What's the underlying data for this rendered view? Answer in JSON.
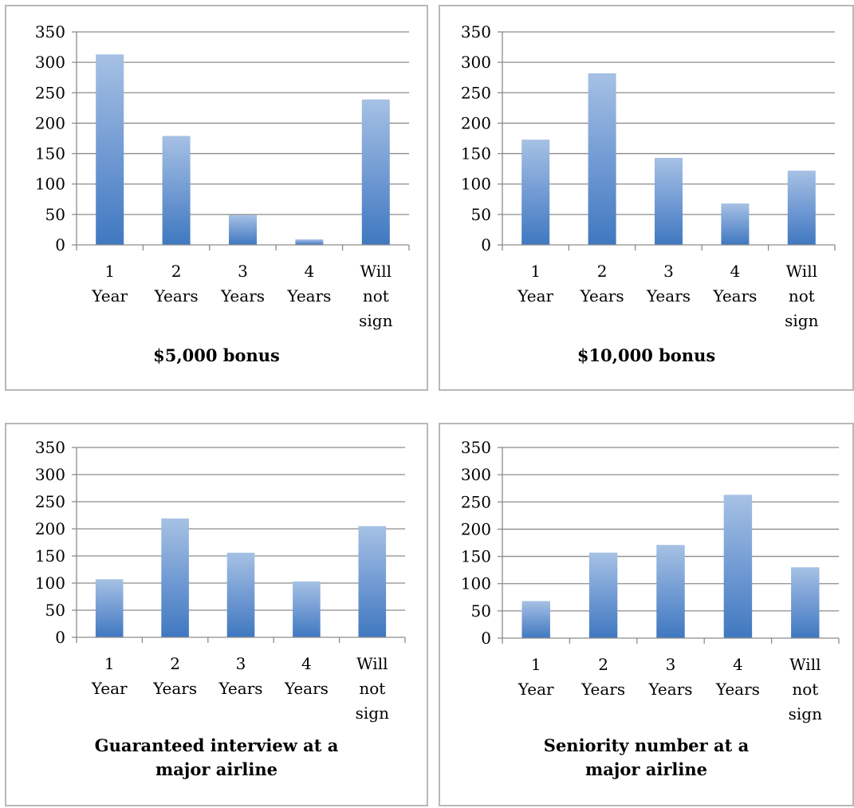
{
  "chart_data": [
    {
      "type": "bar",
      "title": "$5,000 bonus",
      "categories": [
        [
          "1",
          "Year"
        ],
        [
          "2",
          "Years"
        ],
        [
          "3",
          "Years"
        ],
        [
          "4",
          "Years"
        ],
        [
          "Will",
          "not",
          "sign"
        ]
      ],
      "values": [
        313,
        179,
        49,
        9,
        239
      ],
      "ylim": [
        0,
        350
      ],
      "yticks": [
        0,
        50,
        100,
        150,
        200,
        250,
        300,
        350
      ],
      "grid": true,
      "colors": {
        "bar_top": "#a6c1e4",
        "bar_bottom": "#3f78c0",
        "grid": "#8c8c8c"
      }
    },
    {
      "type": "bar",
      "title": "$10,000 bonus",
      "categories": [
        [
          "1",
          "Year"
        ],
        [
          "2",
          "Years"
        ],
        [
          "3",
          "Years"
        ],
        [
          "4",
          "Years"
        ],
        [
          "Will",
          "not",
          "sign"
        ]
      ],
      "values": [
        173,
        282,
        143,
        68,
        122
      ],
      "ylim": [
        0,
        350
      ],
      "yticks": [
        0,
        50,
        100,
        150,
        200,
        250,
        300,
        350
      ],
      "grid": true,
      "colors": {
        "bar_top": "#a6c1e4",
        "bar_bottom": "#3f78c0",
        "grid": "#8c8c8c"
      }
    },
    {
      "type": "bar",
      "title": [
        "Guaranteed interview at a",
        "major airline"
      ],
      "categories": [
        [
          "1",
          "Year"
        ],
        [
          "2",
          "Years"
        ],
        [
          "3",
          "Years"
        ],
        [
          "4",
          "Years"
        ],
        [
          "Will",
          "not",
          "sign"
        ]
      ],
      "values": [
        107,
        219,
        156,
        103,
        205
      ],
      "ylim": [
        0,
        350
      ],
      "yticks": [
        0,
        50,
        100,
        150,
        200,
        250,
        300,
        350
      ],
      "grid": true,
      "colors": {
        "bar_top": "#a6c1e4",
        "bar_bottom": "#3f78c0",
        "grid": "#8c8c8c"
      }
    },
    {
      "type": "bar",
      "title": [
        "Seniority number at a",
        "major airline"
      ],
      "categories": [
        [
          "1",
          "Year"
        ],
        [
          "2",
          "Years"
        ],
        [
          "3",
          "Years"
        ],
        [
          "4",
          "Years"
        ],
        [
          "Will",
          "not",
          "sign"
        ]
      ],
      "values": [
        68,
        157,
        171,
        263,
        130
      ],
      "ylim": [
        0,
        350
      ],
      "yticks": [
        0,
        50,
        100,
        150,
        200,
        250,
        300,
        350
      ],
      "grid": true,
      "colors": {
        "bar_top": "#a6c1e4",
        "bar_bottom": "#3f78c0",
        "grid": "#8c8c8c"
      }
    }
  ]
}
